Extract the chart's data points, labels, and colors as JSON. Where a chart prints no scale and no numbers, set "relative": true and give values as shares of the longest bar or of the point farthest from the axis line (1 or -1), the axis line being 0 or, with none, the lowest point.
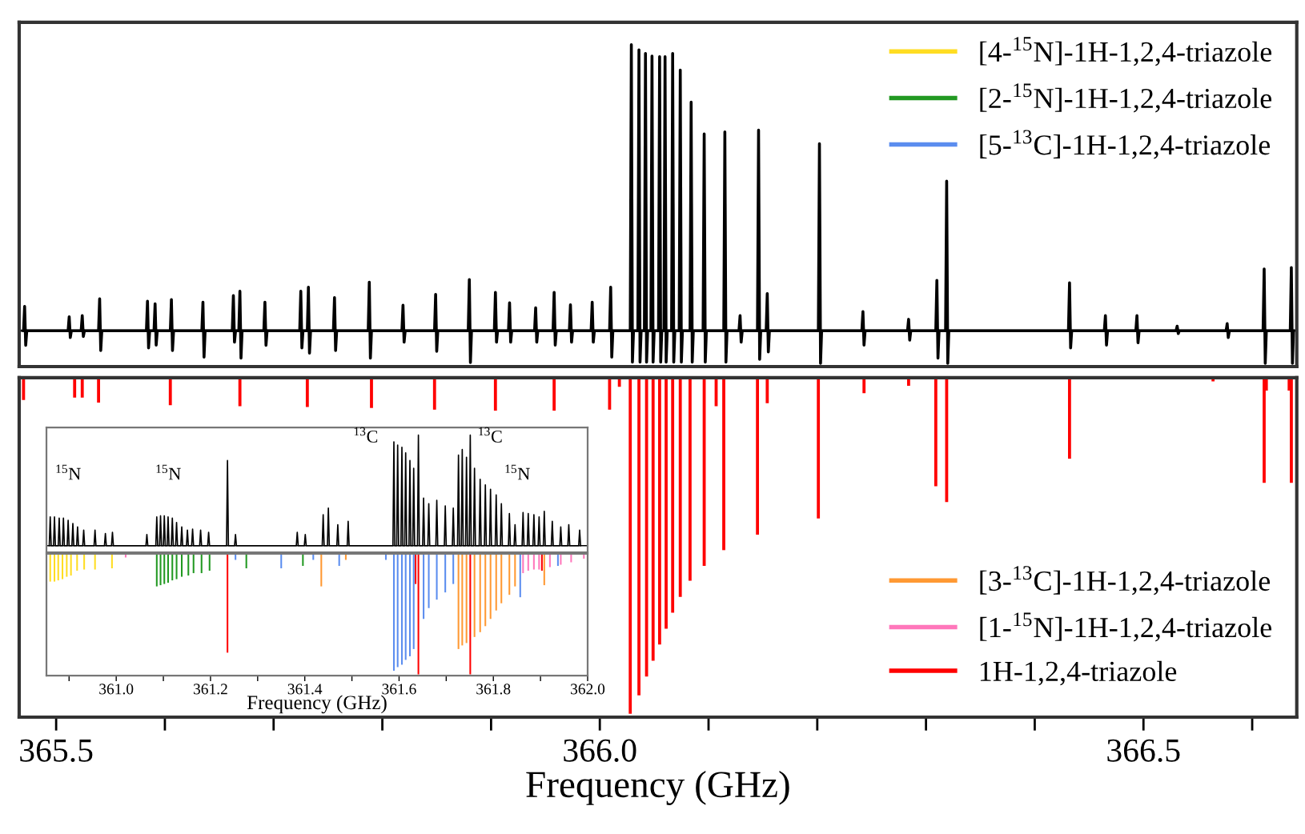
{
  "chart_data": [
    {
      "type": "line",
      "relative": true,
      "tick_labels": false,
      "xlim": [
        365.466,
        366.641
      ],
      "series": [
        {
          "color": "#000000",
          "x": [
            365.47,
            365.471,
            365.472,
            365.473,
            365.511,
            365.512,
            365.513,
            365.514,
            365.523,
            365.524,
            365.525,
            365.526,
            365.539,
            365.54,
            365.541,
            365.542,
            365.583,
            365.584,
            365.585,
            365.586,
            365.59,
            365.591,
            365.592,
            365.593,
            365.605,
            365.606,
            365.607,
            365.608,
            365.634,
            365.635,
            365.636,
            365.637,
            365.662,
            365.663,
            365.664,
            365.665,
            365.668,
            365.669,
            365.67,
            365.671,
            365.691,
            365.692,
            365.693,
            365.694,
            365.724,
            365.725,
            365.726,
            365.727,
            365.731,
            365.732,
            365.733,
            365.734,
            365.755,
            365.756,
            365.757,
            365.758,
            365.787,
            365.788,
            365.789,
            365.79,
            365.818,
            365.819,
            365.82,
            365.821,
            365.848,
            365.849,
            365.85,
            365.851,
            365.879,
            365.88,
            365.881,
            365.882,
            365.903,
            365.904,
            365.905,
            365.906,
            365.916,
            365.917,
            365.918,
            365.919,
            365.94,
            365.941,
            365.942,
            365.943,
            365.957,
            365.958,
            365.959,
            365.96,
            365.972,
            365.973,
            365.974,
            365.975,
            365.992,
            365.993,
            365.994,
            365.995,
            366.009,
            366.01,
            366.011,
            366.012,
            366.028,
            366.029,
            366.03,
            366.031,
            366.035,
            366.036,
            366.037,
            366.038,
            366.041,
            366.042,
            366.043,
            366.044,
            366.047,
            366.048,
            366.049,
            366.05,
            366.054,
            366.055,
            366.056,
            366.057,
            366.059,
            366.06,
            366.061,
            366.062,
            366.066,
            366.067,
            366.068,
            366.069,
            366.073,
            366.074,
            366.075,
            366.076,
            366.083,
            366.084,
            366.085,
            366.086,
            366.095,
            366.096,
            366.097,
            366.098,
            366.114,
            366.115,
            366.116,
            366.117,
            366.128,
            366.129,
            366.13,
            366.131,
            366.145,
            366.146,
            366.147,
            366.148,
            366.153,
            366.154,
            366.155,
            366.156,
            366.201,
            366.202,
            366.203,
            366.204,
            366.241,
            366.242,
            366.243,
            366.244,
            366.283,
            366.284,
            366.285,
            366.286,
            366.309,
            366.31,
            366.311,
            366.312,
            366.318,
            366.319,
            366.32,
            366.321,
            366.431,
            366.432,
            366.433,
            366.434,
            366.464,
            366.465,
            366.466,
            366.467,
            366.493,
            366.494,
            366.495,
            366.496,
            366.53,
            366.531,
            366.532,
            366.533,
            366.576,
            366.577,
            366.578,
            366.579,
            366.61,
            366.611,
            366.612,
            366.613,
            366.635,
            366.636,
            366.637,
            366.638
          ],
          "values": [
            0,
            0.085,
            -0.051,
            0,
            0,
            0.049,
            -0.024,
            0,
            0,
            0.053,
            -0.02,
            0,
            0,
            0.112,
            -0.069,
            0,
            0,
            0.103,
            -0.06,
            0,
            0,
            0.094,
            -0.05,
            0,
            0,
            0.109,
            -0.069,
            0,
            0,
            0.1,
            -0.092,
            0,
            0,
            0.123,
            -0.04,
            0,
            0,
            0.138,
            -0.096,
            0,
            0,
            0.1,
            -0.051,
            0,
            0,
            0.138,
            -0.06,
            0,
            0,
            0.152,
            -0.078,
            0,
            0,
            0.116,
            -0.069,
            0,
            0,
            0.17,
            -0.096,
            0,
            0,
            0.089,
            -0.04,
            0,
            0,
            0.127,
            -0.072,
            0,
            0,
            0.179,
            -0.111,
            0,
            0,
            0.134,
            -0.04,
            0,
            0,
            0.098,
            -0.04,
            0,
            0,
            0.08,
            -0.04,
            0,
            0,
            0.134,
            -0.05,
            0,
            0,
            0.091,
            -0.04,
            0,
            0,
            0.1,
            -0.04,
            0,
            0,
            0.152,
            -0.092,
            0,
            0,
            1.0,
            -0.11,
            0,
            0,
            0.982,
            -0.11,
            0,
            0,
            0.969,
            -0.11,
            0,
            0,
            0.96,
            -0.11,
            0,
            0,
            0.958,
            -0.11,
            0,
            0,
            0.958,
            -0.11,
            0,
            0,
            0.969,
            -0.11,
            0,
            0,
            0.911,
            -0.11,
            0,
            0,
            0.799,
            -0.11,
            0,
            0,
            0.688,
            -0.11,
            0,
            0,
            0.695,
            -0.11,
            0,
            0,
            0.053,
            -0.04,
            0,
            0,
            0.701,
            -0.1,
            0,
            0,
            0.13,
            -0.074,
            0,
            0,
            0.654,
            -0.114,
            0,
            0,
            0.067,
            -0.05,
            0,
            0,
            0.04,
            -0.033,
            0,
            0,
            0.176,
            -0.096,
            0,
            0,
            0.523,
            -0.114,
            0,
            0,
            0.168,
            -0.06,
            0,
            0,
            0.053,
            -0.05,
            0,
            0,
            0.053,
            -0.042,
            0,
            0,
            0.016,
            -0.01,
            0,
            0,
            0.025,
            -0.024,
            0,
            0,
            0.216,
            -0.114,
            0,
            0,
            0.221,
            -0.114,
            0
          ]
        }
      ]
    },
    {
      "type": "bar",
      "relative": true,
      "tick_labels": "x",
      "xlim": [
        365.466,
        366.641
      ],
      "xlabel": "Frequency (GHz)",
      "xticks": [
        {
          "value": 365.5,
          "label": "365.5"
        },
        {
          "value": 365.6,
          "label": null
        },
        {
          "value": 365.7,
          "label": null
        },
        {
          "value": 365.8,
          "label": null
        },
        {
          "value": 365.9,
          "label": null
        },
        {
          "value": 366.0,
          "label": "366.0"
        },
        {
          "value": 366.1,
          "label": null
        },
        {
          "value": 366.2,
          "label": null
        },
        {
          "value": 366.3,
          "label": null
        },
        {
          "value": 366.4,
          "label": null
        },
        {
          "value": 366.5,
          "label": "366.5"
        },
        {
          "value": 366.6,
          "label": null
        }
      ],
      "series": [
        {
          "color": "#ff0000",
          "x": [
            365.47,
            365.517,
            365.524,
            365.539,
            365.605,
            365.669,
            365.731,
            365.79,
            365.848,
            365.904,
            365.958,
            366.009,
            366.018,
            366.028,
            366.036,
            366.043,
            366.049,
            366.055,
            366.061,
            366.067,
            366.074,
            366.083,
            366.096,
            366.107,
            366.114,
            366.145,
            366.154,
            366.2,
            366.201,
            366.243,
            366.284,
            366.309,
            366.319,
            366.432,
            366.564,
            366.611,
            366.613,
            366.634,
            366.636
          ],
          "values": [
            -0.066,
            -0.059,
            -0.059,
            -0.074,
            -0.082,
            -0.085,
            -0.087,
            -0.09,
            -0.095,
            -0.098,
            -0.098,
            -0.095,
            -0.027,
            -1.0,
            -0.945,
            -0.889,
            -0.842,
            -0.794,
            -0.747,
            -0.699,
            -0.652,
            -0.604,
            -0.56,
            -0.085,
            -0.513,
            -0.467,
            -0.076,
            null,
            -0.419,
            -0.046,
            -0.024,
            -0.323,
            -0.37,
            -0.241,
            -0.011,
            -0.313,
            -0.038,
            -0.038,
            -0.313
          ]
        }
      ]
    },
    {
      "type": "line",
      "relative": true,
      "tick_labels": false,
      "xlim": [
        360.852,
        362.0
      ],
      "annotations": [
        "$^{15}$N",
        "$^{15}$N",
        "$^{13}$C",
        "$^{13}$C",
        "$^{15}$N"
      ],
      "series": [
        {
          "color": "#000000",
          "x": [
            360.858,
            360.86,
            360.862,
            360.867,
            360.869,
            360.871,
            360.877,
            360.879,
            360.881,
            360.886,
            360.888,
            360.89,
            360.896,
            360.898,
            360.9,
            360.906,
            360.908,
            360.91,
            360.916,
            360.918,
            360.92,
            360.929,
            360.931,
            360.933,
            360.953,
            360.955,
            360.957,
            360.975,
            360.977,
            360.979,
            360.99,
            360.992,
            360.994,
            361.063,
            361.065,
            361.067,
            361.084,
            361.086,
            361.088,
            361.092,
            361.094,
            361.096,
            361.1,
            361.102,
            361.104,
            361.108,
            361.11,
            361.112,
            361.117,
            361.119,
            361.121,
            361.126,
            361.128,
            361.13,
            361.137,
            361.139,
            361.141,
            361.149,
            361.151,
            361.153,
            361.16,
            361.162,
            361.164,
            361.177,
            361.179,
            361.181,
            361.194,
            361.196,
            361.198,
            361.234,
            361.236,
            361.238,
            361.251,
            361.253,
            361.255,
            361.382,
            361.384,
            361.386,
            361.399,
            361.401,
            361.403,
            361.437,
            361.439,
            361.441,
            361.448,
            361.45,
            361.452,
            361.468,
            361.47,
            361.472,
            361.49,
            361.492,
            361.494,
            361.587,
            361.589,
            361.591,
            361.595,
            361.597,
            361.599,
            361.604,
            361.606,
            361.608,
            361.612,
            361.614,
            361.616,
            361.621,
            361.623,
            361.625,
            361.629,
            361.631,
            361.633,
            361.639,
            361.641,
            361.643,
            361.65,
            361.652,
            361.654,
            361.661,
            361.663,
            361.665,
            361.678,
            361.68,
            361.682,
            361.696,
            361.698,
            361.7,
            361.713,
            361.715,
            361.717,
            361.724,
            361.726,
            361.728,
            361.732,
            361.734,
            361.736,
            361.741,
            361.743,
            361.745,
            361.749,
            361.751,
            361.753,
            361.758,
            361.76,
            361.762,
            361.77,
            361.772,
            361.774,
            361.781,
            361.783,
            361.785,
            361.792,
            361.794,
            361.796,
            361.804,
            361.806,
            361.808,
            361.815,
            361.817,
            361.819,
            361.832,
            361.834,
            361.836,
            361.844,
            361.846,
            361.848,
            361.861,
            361.863,
            361.865,
            361.872,
            361.874,
            361.876,
            361.884,
            361.886,
            361.888,
            361.895,
            361.897,
            361.899,
            361.906,
            361.908,
            361.91,
            361.923,
            361.925,
            361.927,
            361.941,
            361.943,
            361.945,
            361.958,
            361.96,
            361.962,
            361.981,
            361.983,
            361.985
          ],
          "values": [
            0,
            0.26,
            0,
            0,
            0.26,
            0,
            0,
            0.25,
            0,
            0,
            0.25,
            0,
            0,
            0.23,
            0,
            0,
            0.2,
            0,
            0,
            0.17,
            0,
            0,
            0.14,
            0,
            0,
            0.14,
            0,
            0,
            0.11,
            0,
            0,
            0.12,
            0,
            0,
            0.1,
            0,
            0,
            0.26,
            0,
            0,
            0.27,
            0,
            0,
            0.27,
            0,
            0,
            0.26,
            0,
            0,
            0.25,
            0,
            0,
            0.21,
            0,
            0,
            0.17,
            0,
            0,
            0.14,
            0,
            0,
            0.15,
            0,
            0,
            0.14,
            0,
            0,
            0.12,
            0,
            0,
            0.77,
            0,
            0,
            0.1,
            0,
            0,
            0.12,
            0,
            0,
            0.1,
            0,
            0,
            0.28,
            0,
            0,
            0.34,
            0,
            0,
            0.19,
            0,
            0,
            0.22,
            0,
            0,
            0.94,
            0,
            0,
            0.91,
            0,
            0,
            0.89,
            0,
            0,
            0.84,
            0,
            0,
            0.77,
            0,
            0,
            0.7,
            0,
            0,
            1.0,
            0,
            0,
            0.43,
            0,
            0,
            0.38,
            0,
            0,
            0.41,
            0,
            0,
            0.36,
            0,
            0,
            0.34,
            0,
            0,
            0.82,
            0,
            0,
            0.87,
            0,
            0,
            0.8,
            0,
            0,
            1.0,
            0,
            0,
            0.7,
            0,
            0,
            0.6,
            0,
            0,
            0.55,
            0,
            0,
            0.51,
            0,
            0,
            0.46,
            0,
            0,
            0.38,
            0,
            0,
            0.29,
            0,
            0,
            0.19,
            0,
            0,
            0.3,
            0,
            0,
            0.29,
            0,
            0,
            0.28,
            0,
            0,
            0.26,
            0,
            0,
            0.31,
            0,
            0,
            0.22,
            0,
            0,
            0.17,
            0,
            0,
            0.19,
            0,
            0,
            0.14,
            0
          ]
        }
      ]
    },
    {
      "type": "bar",
      "relative": true,
      "tick_labels": "x",
      "xlim": [
        360.852,
        362.0
      ],
      "xlabel": "Frequency (GHz)",
      "legend": "right",
      "xticks": [
        {
          "value": 360.9,
          "label": null
        },
        {
          "value": 361.0,
          "label": "361.0"
        },
        {
          "value": 361.1,
          "label": null
        },
        {
          "value": 361.2,
          "label": "361.2"
        },
        {
          "value": 361.3,
          "label": null
        },
        {
          "value": 361.4,
          "label": "361.4"
        },
        {
          "value": 361.5,
          "label": null
        },
        {
          "value": 361.6,
          "label": "361.6"
        },
        {
          "value": 361.7,
          "label": null
        },
        {
          "value": 361.8,
          "label": "361.8"
        },
        {
          "value": 361.9,
          "label": null
        },
        {
          "value": 362.0,
          "label": "362.0"
        }
      ],
      "series": [
        {
          "name": "[4-$^{15}$N]-1H-1,2,4-triazole",
          "color": "#ffdd22",
          "x": [
            360.86,
            360.869,
            360.877,
            360.886,
            360.895,
            360.904,
            360.917,
            360.932,
            360.955,
            360.991
          ],
          "values": [
            -0.23,
            -0.23,
            -0.22,
            -0.21,
            -0.19,
            -0.18,
            -0.14,
            -0.13,
            -0.13,
            -0.12
          ]
        },
        {
          "name": "[2-$^{15}$N]-1H-1,2,4-triazole",
          "color": "#229922",
          "x": [
            361.086,
            361.094,
            361.102,
            361.11,
            361.119,
            361.128,
            361.139,
            361.153,
            361.164,
            361.181,
            361.198,
            361.276,
            361.396
          ],
          "values": [
            -0.27,
            -0.26,
            -0.25,
            -0.24,
            -0.22,
            -0.21,
            -0.19,
            -0.18,
            -0.16,
            -0.16,
            -0.14,
            -0.12,
            -0.1
          ]
        },
        {
          "name": "[5-$^{13}$C]-1H-1,2,4-triazole",
          "color": "#5b8def",
          "x": [
            361.253,
            361.35,
            361.418,
            361.473,
            361.572,
            361.589,
            361.597,
            361.606,
            361.614,
            361.623,
            361.631,
            361.652,
            361.663,
            361.68,
            361.698,
            361.715,
            361.857,
            361.937
          ],
          "values": [
            -0.05,
            -0.12,
            -0.05,
            -0.1,
            -0.05,
            -0.97,
            -0.94,
            -0.92,
            -0.88,
            -0.85,
            -0.79,
            -0.54,
            -0.45,
            -0.38,
            -0.32,
            -0.25,
            -0.36,
            -0.1
          ]
        },
        {
          "name": "[3-$^{13}$C]-1H-1,2,4-triazole",
          "color": "#ff9933",
          "x": [
            361.435,
            361.487,
            361.726,
            361.734,
            361.743,
            361.76,
            361.772,
            361.783,
            361.794,
            361.806,
            361.817,
            361.834,
            361.846,
            361.908
          ],
          "values": [
            -0.27,
            -0.05,
            -0.79,
            -0.76,
            -0.74,
            -0.69,
            -0.65,
            -0.6,
            -0.54,
            -0.47,
            -0.41,
            -0.34,
            -0.27,
            -0.26
          ]
        },
        {
          "name": "[1-$^{15}$N]-1H-1,2,4-triazole",
          "color": "#ff77bb",
          "x": [
            361.02,
            361.863,
            361.874,
            361.886,
            361.897,
            361.92,
            361.943,
            361.965,
            361.992
          ],
          "values": [
            -0.03,
            -0.16,
            -0.14,
            -0.13,
            -0.13,
            -0.11,
            -0.09,
            -0.07,
            -0.04
          ]
        },
        {
          "name": "1H-1,2,4-triazole",
          "color": "#ff0000",
          "x": [
            361.236,
            361.635,
            361.641,
            361.751,
            361.903
          ],
          "values": [
            -0.82,
            -0.25,
            -1.0,
            -1.0,
            -0.14
          ]
        }
      ]
    }
  ]
}
